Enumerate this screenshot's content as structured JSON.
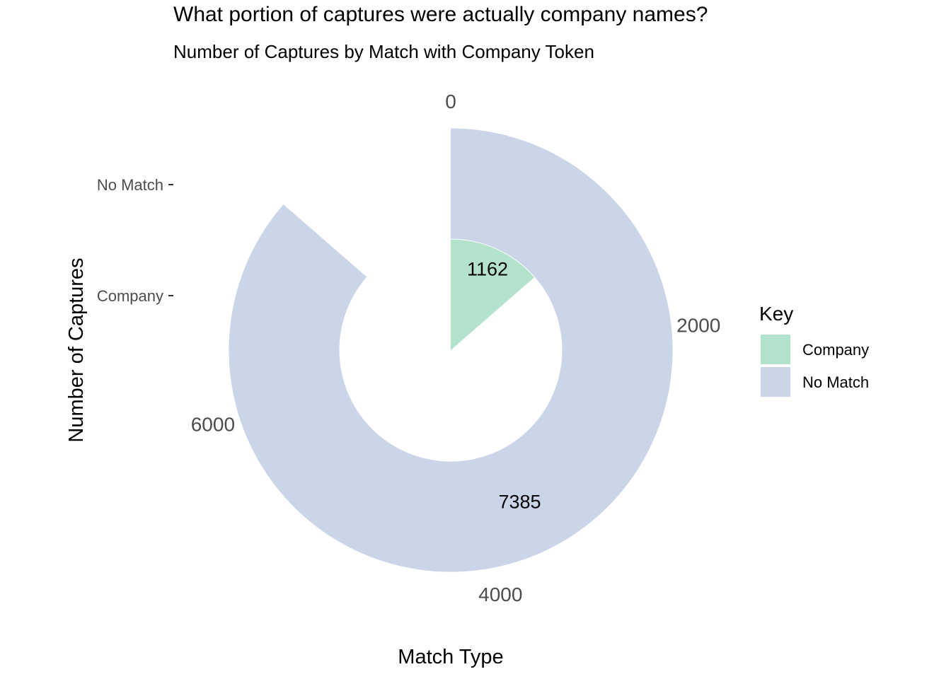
{
  "chart_data": {
    "type": "pie",
    "title": "What portion of captures were actually company names?",
    "subtitle": "Number of Captures by Match with Company Token",
    "xlabel": "Match Type",
    "ylabel": "Number of Captures",
    "categories": [
      "Company",
      "No Match"
    ],
    "values": [
      1162,
      7385
    ],
    "colors": {
      "Company": "#b3e2cd",
      "No Match": "#cbd5e8"
    },
    "angular_ticks": [
      0,
      2000,
      4000,
      6000
    ],
    "angular_max": 8547,
    "radial_tick_labels": [
      "No Match",
      "Company"
    ],
    "data_labels": [
      "1162",
      "7385"
    ],
    "legend": {
      "title": "Key",
      "position": "right",
      "entries": [
        "Company",
        "No Match"
      ]
    },
    "grid": false
  }
}
